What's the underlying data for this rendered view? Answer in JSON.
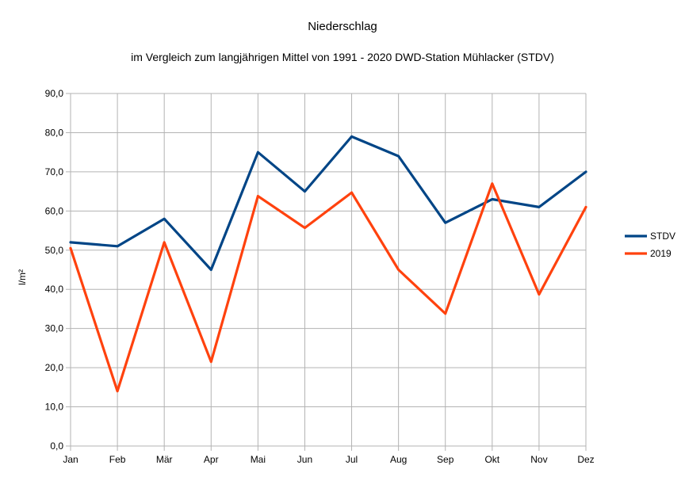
{
  "chart_data": {
    "type": "line",
    "title": "Niederschlag",
    "subtitle": "im Vergleich zum langjährigen Mittel von 1991 - 2020 DWD-Station Mühlacker (STDV)",
    "xlabel": "",
    "ylabel": "l/m²",
    "categories": [
      "Jan",
      "Feb",
      "Mär",
      "Apr",
      "Mai",
      "Jun",
      "Jul",
      "Aug",
      "Sep",
      "Okt",
      "Nov",
      "Dez"
    ],
    "ylim": [
      0,
      90
    ],
    "yticks": [
      "0,0",
      "10,0",
      "20,0",
      "30,0",
      "40,0",
      "50,0",
      "60,0",
      "70,0",
      "80,0",
      "90,0"
    ],
    "grid": true,
    "legend_position": "right",
    "series": [
      {
        "name": "STDV",
        "color": "#004586",
        "values": [
          52,
          51,
          58,
          45,
          75,
          65,
          79,
          74,
          57,
          63,
          61,
          70
        ]
      },
      {
        "name": "2019",
        "color": "#ff420e",
        "values": [
          50.5,
          14,
          52,
          21.5,
          63.8,
          55.7,
          64.7,
          45,
          33.8,
          67,
          38.7,
          61
        ]
      }
    ]
  }
}
